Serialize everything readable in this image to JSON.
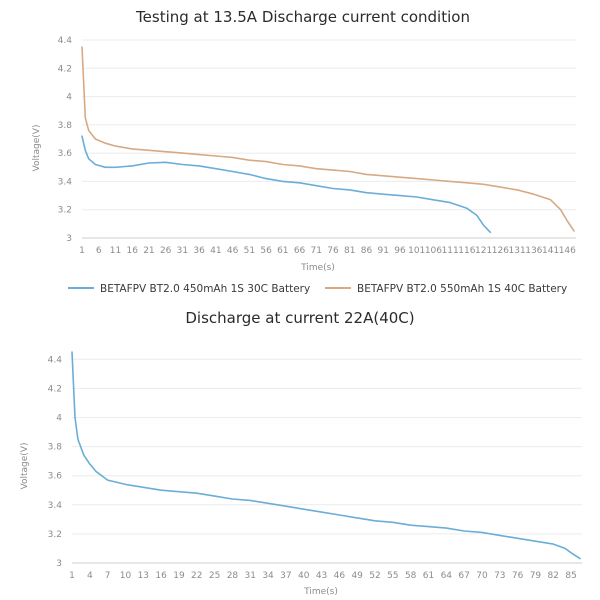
{
  "chart_data": [
    {
      "type": "line",
      "title": "Testing at 13.5A Discharge current condition",
      "xlabel": "Time(s)",
      "ylabel": "Voltage(V)",
      "ylim": [
        3,
        4.4
      ],
      "xlim": [
        1,
        148
      ],
      "y_ticks": [
        "3",
        "3.2",
        "3.4",
        "3.6",
        "3.8",
        "4",
        "4.2",
        "4.4"
      ],
      "x_ticks": [
        "1",
        "6",
        "11",
        "16",
        "21",
        "26",
        "31",
        "36",
        "41",
        "46",
        "51",
        "56",
        "61",
        "66",
        "71",
        "76",
        "81",
        "86",
        "91",
        "96",
        "101",
        "106",
        "111",
        "116",
        "121",
        "126",
        "131",
        "136",
        "141",
        "146"
      ],
      "grid": "horizontal",
      "legend_position": "bottom",
      "series": [
        {
          "name": "BETAFPV BT2.0 450mAh 1S 30C Battery",
          "color": "#6aaed8",
          "x": [
            1,
            2,
            3,
            5,
            8,
            11,
            16,
            21,
            26,
            31,
            36,
            41,
            46,
            51,
            56,
            61,
            66,
            71,
            76,
            81,
            86,
            91,
            96,
            101,
            106,
            111,
            116,
            119,
            121,
            123
          ],
          "y": [
            3.72,
            3.62,
            3.56,
            3.52,
            3.5,
            3.5,
            3.51,
            3.53,
            3.535,
            3.52,
            3.51,
            3.49,
            3.47,
            3.45,
            3.42,
            3.4,
            3.39,
            3.37,
            3.35,
            3.34,
            3.32,
            3.31,
            3.3,
            3.29,
            3.27,
            3.25,
            3.21,
            3.16,
            3.09,
            3.04
          ]
        },
        {
          "name": "BETAFPV BT2.0 550mAh 1S 40C Battery",
          "color": "#d8a982",
          "x": [
            1,
            2,
            3,
            5,
            8,
            11,
            16,
            21,
            26,
            31,
            36,
            41,
            46,
            51,
            56,
            61,
            66,
            71,
            76,
            81,
            86,
            91,
            96,
            101,
            106,
            111,
            116,
            121,
            126,
            131,
            136,
            141,
            144,
            146,
            148
          ],
          "y": [
            4.35,
            3.85,
            3.76,
            3.7,
            3.67,
            3.65,
            3.63,
            3.62,
            3.61,
            3.6,
            3.59,
            3.58,
            3.57,
            3.55,
            3.54,
            3.52,
            3.51,
            3.49,
            3.48,
            3.47,
            3.45,
            3.44,
            3.43,
            3.42,
            3.41,
            3.4,
            3.39,
            3.38,
            3.36,
            3.34,
            3.31,
            3.27,
            3.2,
            3.12,
            3.05
          ]
        }
      ]
    },
    {
      "type": "line",
      "title": "Discharge at current 22A(40C)",
      "xlabel": "Time(s)",
      "ylabel": "Voltage(V)",
      "ylim": [
        3,
        4.45
      ],
      "xlim": [
        1,
        86.5
      ],
      "y_ticks": [
        "3",
        "3.2",
        "3.4",
        "3.6",
        "3.8",
        "4",
        "4.2",
        "4.4"
      ],
      "x_ticks": [
        "1",
        "4",
        "7",
        "10",
        "13",
        "16",
        "19",
        "22",
        "25",
        "28",
        "31",
        "34",
        "37",
        "40",
        "43",
        "46",
        "49",
        "52",
        "55",
        "58",
        "61",
        "64",
        "67",
        "70",
        "73",
        "76",
        "79",
        "82",
        "85"
      ],
      "grid": "horizontal",
      "series": [
        {
          "color": "#6aaed8",
          "x": [
            1,
            1.5,
            2,
            3,
            4,
            5,
            7,
            10,
            13,
            16,
            19,
            22,
            25,
            28,
            31,
            34,
            37,
            40,
            43,
            46,
            49,
            52,
            55,
            58,
            61,
            64,
            67,
            70,
            73,
            76,
            79,
            82,
            84,
            85,
            86.5
          ],
          "y": [
            4.45,
            4.0,
            3.85,
            3.74,
            3.68,
            3.63,
            3.57,
            3.54,
            3.52,
            3.5,
            3.49,
            3.48,
            3.46,
            3.44,
            3.43,
            3.41,
            3.39,
            3.37,
            3.35,
            3.33,
            3.31,
            3.29,
            3.28,
            3.26,
            3.25,
            3.24,
            3.22,
            3.21,
            3.19,
            3.17,
            3.15,
            3.13,
            3.1,
            3.07,
            3.03
          ]
        }
      ]
    }
  ]
}
